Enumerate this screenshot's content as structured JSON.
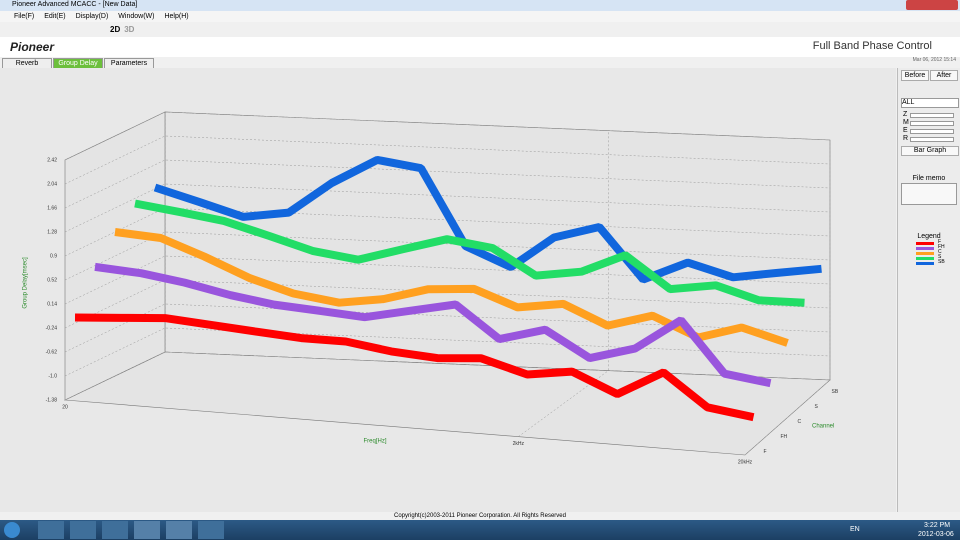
{
  "window": {
    "title": "Pioneer Advanced MCACC - [New Data]"
  },
  "menu": [
    "File(F)",
    "Edit(E)",
    "Display(D)",
    "Window(W)",
    "Help(H)"
  ],
  "toolbar": [
    "2D",
    "3D"
  ],
  "header": {
    "brand": "Pioneer",
    "title": "Full Band Phase Control",
    "date": "Mar 06, 2012 15:14"
  },
  "tabs": [
    "Reverb",
    "Group Delay",
    "Parameters"
  ],
  "side": {
    "buttons": [
      "Before",
      "After"
    ],
    "select": "ALL",
    "sliders": [
      "Z",
      "M",
      "E",
      "R"
    ],
    "bar_graph": "Bar Graph",
    "file_memo": "File memo",
    "legend_title": "Legend"
  },
  "chart_data": {
    "type": "line3d",
    "y_label": "Group Delay[msec]",
    "x_label": "Freq[Hz]",
    "z_label": "Channel",
    "ylim": [
      -1.38,
      2.42
    ],
    "yticks": [
      2.42,
      2.04,
      1.66,
      1.28,
      0.9,
      0.52,
      0.14,
      -0.24,
      -0.62,
      {
        "value": -1,
        "label": "-1.0"
      },
      -1.38
    ],
    "xlim": [
      20,
      20000
    ],
    "log_x": true,
    "xticks": [
      20,
      {
        "value": 2000,
        "label": "2kHz"
      },
      {
        "value": 20000,
        "label": "20kHz"
      }
    ],
    "x": [
      20,
      32,
      50,
      80,
      125,
      200,
      315,
      500,
      800,
      1250,
      2000,
      3150,
      5000,
      8000,
      12500,
      20000
    ],
    "series": [
      {
        "name": "F",
        "color": "#ff0000",
        "values": [
          -0.15,
          -0.1,
          -0.05,
          -0.1,
          -0.15,
          -0.2,
          -0.2,
          -0.3,
          -0.35,
          -0.3,
          -0.5,
          -0.4,
          -0.7,
          -0.3,
          -0.8,
          -0.9
        ]
      },
      {
        "name": "FH",
        "color": "#9955dd",
        "values": [
          0.5,
          0.45,
          0.35,
          0.2,
          0.1,
          0.05,
          0.0,
          0.15,
          0.3,
          -0.2,
          0.0,
          -0.4,
          -0.2,
          0.3,
          -0.5,
          -0.6
        ]
      },
      {
        "name": "C",
        "color": "#ffa020",
        "values": [
          0.9,
          0.85,
          0.6,
          0.3,
          0.1,
          0.0,
          0.1,
          0.3,
          0.35,
          0.1,
          0.2,
          -0.1,
          0.1,
          -0.2,
          0.0,
          -0.2
        ]
      },
      {
        "name": "S",
        "color": "#22dd66",
        "values": [
          1.2,
          1.1,
          1.0,
          0.8,
          0.6,
          0.5,
          0.7,
          0.9,
          0.8,
          0.4,
          0.5,
          0.8,
          0.3,
          0.4,
          0.2,
          0.2
        ]
      },
      {
        "name": "SB",
        "color": "#1166dd",
        "values": [
          1.3,
          1.1,
          0.9,
          1.0,
          1.5,
          1.9,
          1.8,
          0.6,
          0.3,
          0.8,
          1.0,
          0.2,
          0.5,
          0.3,
          0.4,
          0.5
        ]
      }
    ]
  },
  "footer": {
    "copyright": "Copyright(c)2003-2011 Pioneer Corporation. All Rights Reserved"
  },
  "taskbar": {
    "lang": "EN",
    "time": "3:22 PM",
    "date": "2012-03-06"
  }
}
